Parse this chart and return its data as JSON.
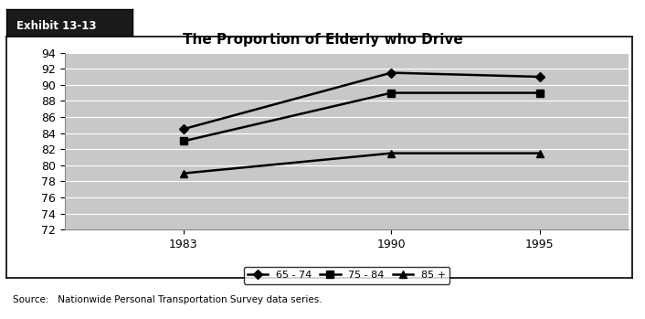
{
  "title": "The Proportion of Elderly who Drive",
  "exhibit_label": "Exhibit 13-13",
  "source_text": "Source:   Nationwide Personal Transportation Survey data series.",
  "years": [
    1983,
    1990,
    1995
  ],
  "series_order": [
    "65 - 74",
    "75 - 84",
    "85 +"
  ],
  "series": {
    "65 - 74": {
      "values": [
        84.5,
        91.5,
        91.0
      ],
      "marker": "D",
      "linewidth": 1.8
    },
    "75 - 84": {
      "values": [
        83.0,
        89.0,
        89.0
      ],
      "marker": "s",
      "linewidth": 1.8
    },
    "85 +": {
      "values": [
        79.0,
        81.5,
        81.5
      ],
      "marker": "^",
      "linewidth": 1.8
    }
  },
  "ylim": [
    72,
    94
  ],
  "yticks": [
    72,
    74,
    76,
    78,
    80,
    82,
    84,
    86,
    88,
    90,
    92,
    94
  ],
  "xticks": [
    1983,
    1990,
    1995
  ],
  "xlim": [
    1979,
    1998
  ],
  "plot_bg_color": "#c8c8c8",
  "fig_bg_color": "#ffffff",
  "title_fontsize": 11,
  "axis_fontsize": 9,
  "legend_fontsize": 8,
  "exhibit_bg": "#1a1a1a",
  "exhibit_fg": "#ffffff"
}
